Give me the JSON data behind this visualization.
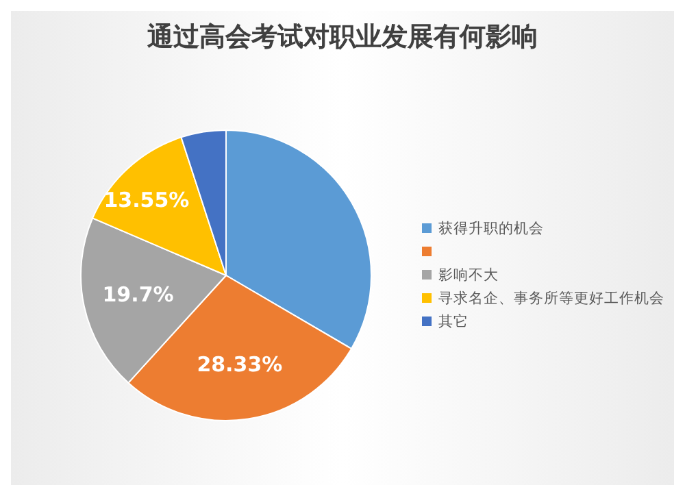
{
  "chart_data": {
    "type": "pie",
    "title": "通过高会考试对职业发展有何影响",
    "categories": [
      "获得升职的机会",
      null,
      "影响不大",
      "寻求名企、事务所等更好工作机会",
      "其它"
    ],
    "values": [
      33.42,
      28.33,
      19.7,
      13.55,
      5
    ],
    "colors": [
      "#5b9bd5",
      "#ed7d31",
      "#a5a5a5",
      "#ffc000",
      "#4472c4"
    ],
    "value_labels": [
      null,
      "28.33%",
      "19.7%",
      "13.55%",
      null
    ],
    "legend": "right"
  }
}
